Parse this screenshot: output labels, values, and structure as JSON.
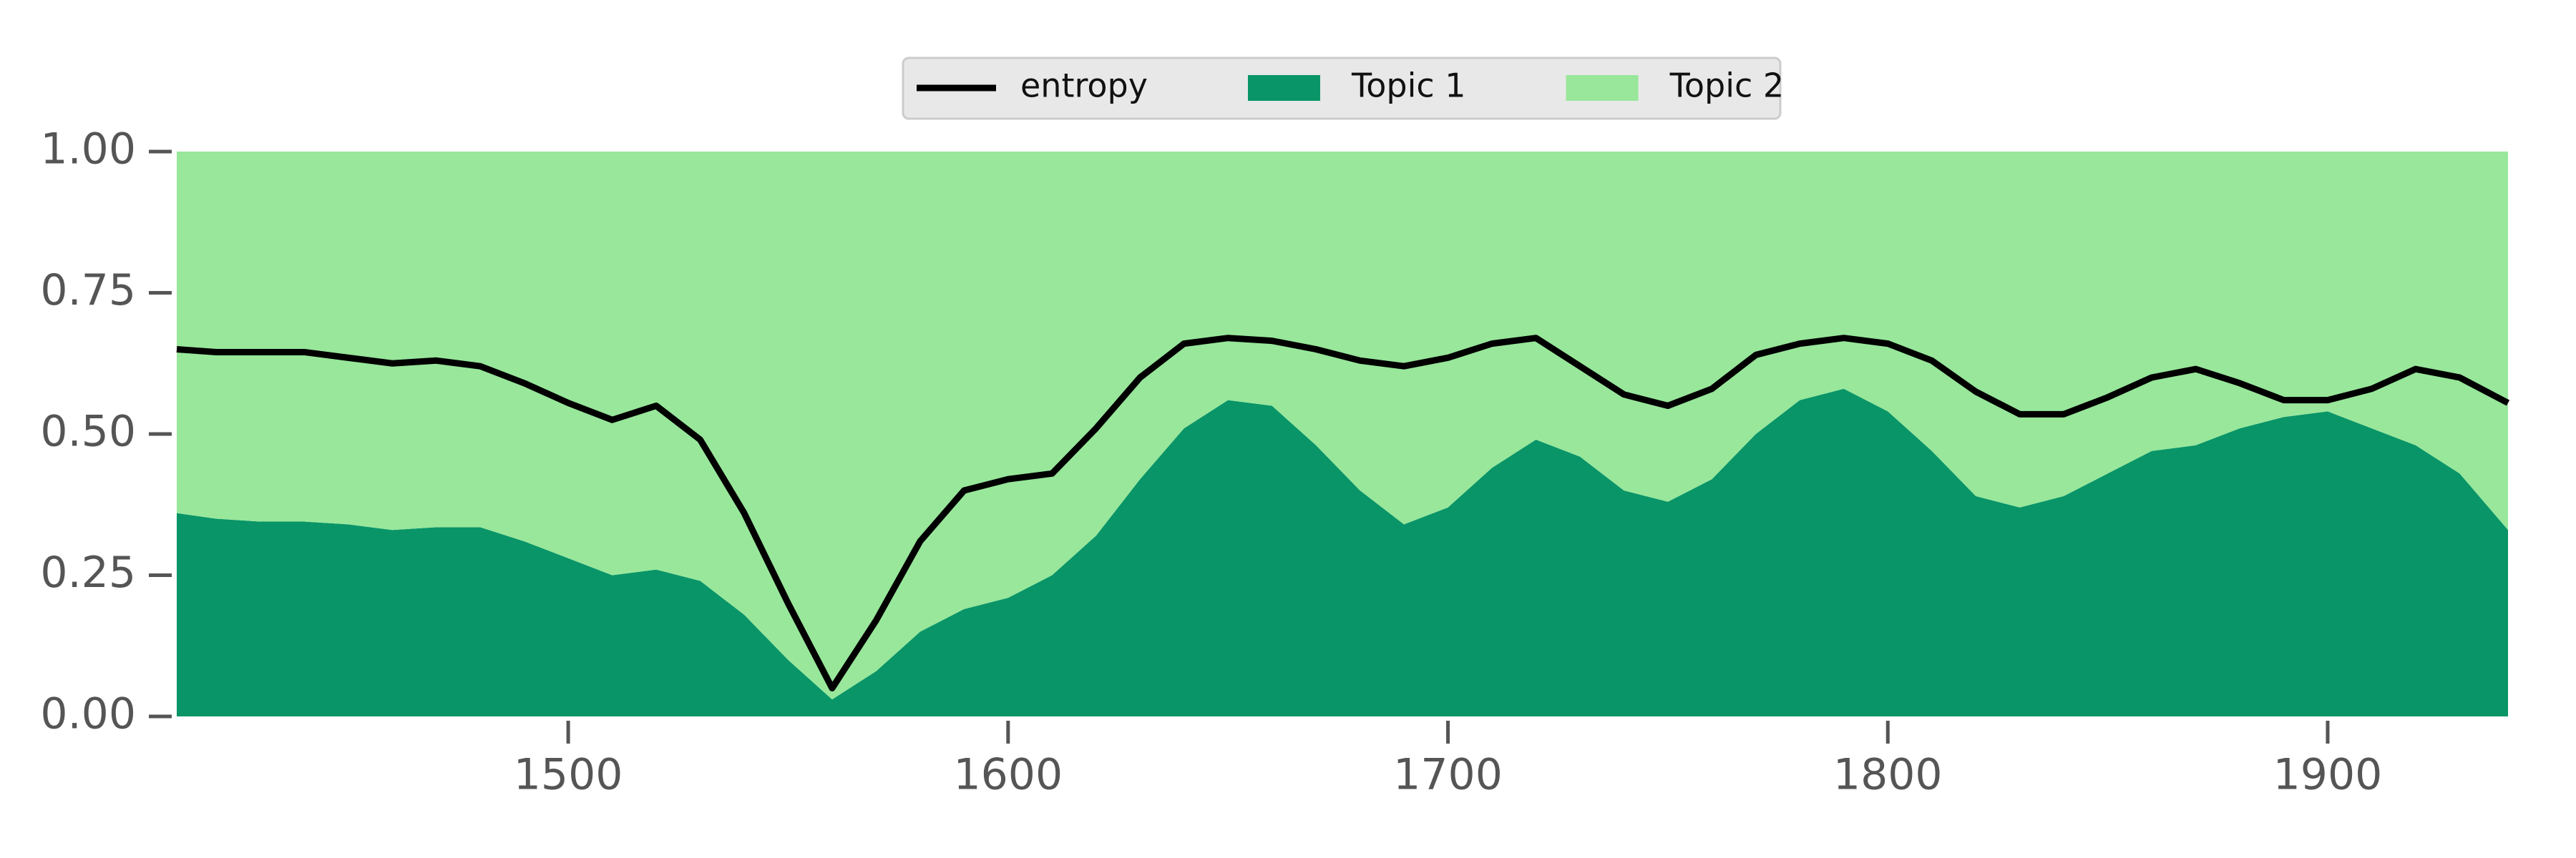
{
  "chart_data": {
    "type": "area",
    "x": [
      1411,
      1420,
      1430,
      1440,
      1450,
      1460,
      1470,
      1480,
      1490,
      1500,
      1510,
      1520,
      1530,
      1540,
      1550,
      1560,
      1570,
      1580,
      1590,
      1600,
      1610,
      1620,
      1630,
      1640,
      1650,
      1660,
      1670,
      1680,
      1690,
      1700,
      1710,
      1720,
      1730,
      1740,
      1750,
      1760,
      1770,
      1780,
      1790,
      1800,
      1810,
      1820,
      1830,
      1840,
      1850,
      1860,
      1870,
      1880,
      1890,
      1900,
      1910,
      1920,
      1930,
      1941
    ],
    "series": [
      {
        "name": "entropy",
        "color": "#000000",
        "kind": "line",
        "values": [
          0.65,
          0.645,
          0.645,
          0.645,
          0.635,
          0.625,
          0.63,
          0.62,
          0.59,
          0.555,
          0.525,
          0.55,
          0.49,
          0.36,
          0.2,
          0.05,
          0.17,
          0.31,
          0.4,
          0.42,
          0.43,
          0.51,
          0.6,
          0.66,
          0.67,
          0.665,
          0.65,
          0.63,
          0.62,
          0.635,
          0.66,
          0.67,
          0.62,
          0.57,
          0.55,
          0.58,
          0.64,
          0.66,
          0.67,
          0.66,
          0.63,
          0.575,
          0.535,
          0.535,
          0.565,
          0.6,
          0.615,
          0.59,
          0.56,
          0.56,
          0.58,
          0.615,
          0.6,
          0.555
        ]
      },
      {
        "name": "Topic 1",
        "color": "#099567",
        "kind": "stack",
        "values": [
          0.36,
          0.35,
          0.345,
          0.345,
          0.34,
          0.33,
          0.335,
          0.335,
          0.31,
          0.28,
          0.25,
          0.26,
          0.24,
          0.18,
          0.1,
          0.03,
          0.08,
          0.15,
          0.19,
          0.21,
          0.25,
          0.32,
          0.42,
          0.51,
          0.56,
          0.55,
          0.48,
          0.4,
          0.34,
          0.37,
          0.44,
          0.49,
          0.46,
          0.4,
          0.38,
          0.42,
          0.5,
          0.56,
          0.58,
          0.54,
          0.47,
          0.39,
          0.37,
          0.39,
          0.43,
          0.47,
          0.48,
          0.51,
          0.53,
          0.54,
          0.51,
          0.48,
          0.43,
          0.33
        ]
      },
      {
        "name": "Topic 2",
        "color": "#98e79b",
        "kind": "stack",
        "values": [
          0.64,
          0.65,
          0.655,
          0.655,
          0.66,
          0.67,
          0.665,
          0.665,
          0.69,
          0.72,
          0.75,
          0.74,
          0.76,
          0.82,
          0.9,
          0.97,
          0.92,
          0.85,
          0.81,
          0.79,
          0.75,
          0.68,
          0.58,
          0.49,
          0.44,
          0.45,
          0.52,
          0.6,
          0.66,
          0.63,
          0.56,
          0.51,
          0.54,
          0.6,
          0.62,
          0.58,
          0.5,
          0.44,
          0.42,
          0.46,
          0.53,
          0.61,
          0.63,
          0.61,
          0.57,
          0.53,
          0.52,
          0.49,
          0.47,
          0.46,
          0.49,
          0.52,
          0.57,
          0.67
        ]
      }
    ],
    "xlim": [
      1411,
      1941
    ],
    "xticks": [
      1500,
      1600,
      1700,
      1800,
      1900
    ],
    "ylim": [
      0,
      1
    ],
    "yticks": [
      {
        "value": 0,
        "label": "0.00"
      },
      {
        "value": 0.25,
        "label": "0.25"
      },
      {
        "value": 0.5,
        "label": "0.50"
      },
      {
        "value": 0.75,
        "label": "0.75"
      },
      {
        "value": 1,
        "label": "1.00"
      }
    ],
    "legend": "upper center",
    "grid": false
  }
}
